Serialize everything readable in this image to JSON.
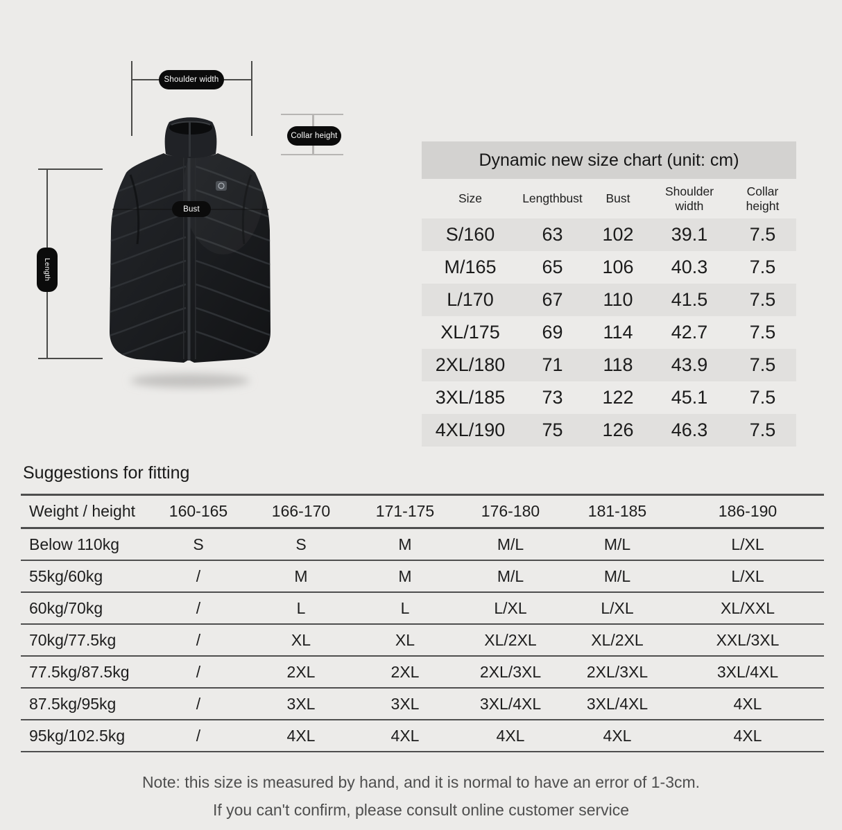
{
  "vest": {
    "labels": {
      "shoulder": "Shoulder width",
      "collar": "Collar height",
      "bust": "Bust",
      "length": "Length"
    }
  },
  "size_chart": {
    "title": "Dynamic new size chart (unit: cm)",
    "columns": [
      "Size",
      "Lengthbust",
      "Bust",
      "Shoulder width",
      "Collar height"
    ],
    "rows": [
      [
        "S/160",
        "63",
        "102",
        "39.1",
        "7.5"
      ],
      [
        "M/165",
        "65",
        "106",
        "40.3",
        "7.5"
      ],
      [
        "L/170",
        "67",
        "110",
        "41.5",
        "7.5"
      ],
      [
        "XL/175",
        "69",
        "114",
        "42.7",
        "7.5"
      ],
      [
        "2XL/180",
        "71",
        "118",
        "43.9",
        "7.5"
      ],
      [
        "3XL/185",
        "73",
        "122",
        "45.1",
        "7.5"
      ],
      [
        "4XL/190",
        "75",
        "126",
        "46.3",
        "7.5"
      ]
    ]
  },
  "fitting": {
    "heading": "Suggestions for fitting",
    "columns": [
      "Weight / height",
      "160-165",
      "166-170",
      "171-175",
      "176-180",
      "181-185",
      "186-190"
    ],
    "rows": [
      [
        "Below 110kg",
        "S",
        "S",
        "M",
        "M/L",
        "M/L",
        "L/XL"
      ],
      [
        "55kg/60kg",
        "/",
        "M",
        "M",
        "M/L",
        "M/L",
        "L/XL"
      ],
      [
        "60kg/70kg",
        "/",
        "L",
        "L",
        "L/XL",
        "L/XL",
        "XL/XXL"
      ],
      [
        "70kg/77.5kg",
        "/",
        "XL",
        "XL",
        "XL/2XL",
        "XL/2XL",
        "XXL/3XL"
      ],
      [
        "77.5kg/87.5kg",
        "/",
        "2XL",
        "2XL",
        "2XL/3XL",
        "2XL/3XL",
        "3XL/4XL"
      ],
      [
        "87.5kg/95kg",
        "/",
        "3XL",
        "3XL",
        "3XL/4XL",
        "3XL/4XL",
        "4XL"
      ],
      [
        "95kg/102.5kg",
        "/",
        "4XL",
        "4XL",
        "4XL",
        "4XL",
        "4XL"
      ]
    ]
  },
  "note": {
    "line1": "Note: this size is measured by hand, and it is normal to have an error of 1-3cm.",
    "line2": "If you can't confirm, please consult online customer service"
  },
  "colors": {
    "page_bg": "#ecebe9",
    "title_band_bg": "#d3d2d0",
    "row_stripe_bg": "#e1e0de",
    "table_line": "#4e4e4e",
    "pill_bg": "#0b0b0b",
    "pill_text": "#ffffff",
    "vest_body": "#1b1d20"
  }
}
